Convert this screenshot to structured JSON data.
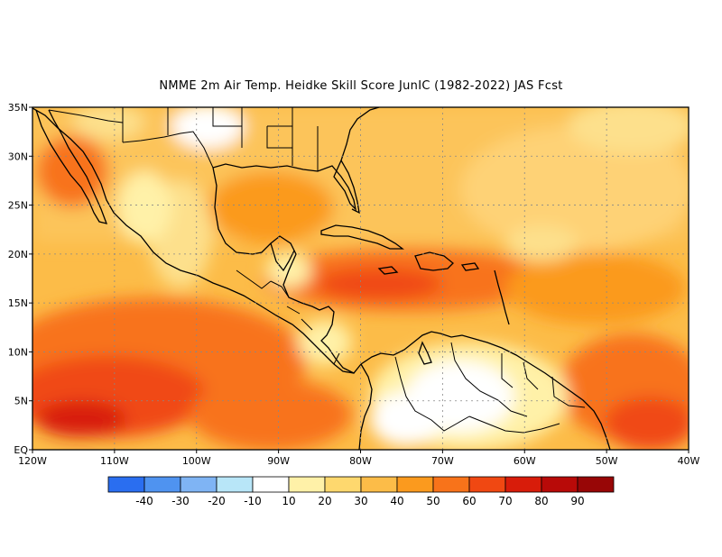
{
  "title": "NMME  2m Air Temp. Heidke Skill Score JunIC (1982-2022) JAS Fcst",
  "map": {
    "lon_range": [
      -120,
      -40
    ],
    "lat_range": [
      0,
      35
    ],
    "lat_ticks": [
      {
        "value": 35,
        "label": "35N"
      },
      {
        "value": 30,
        "label": "30N"
      },
      {
        "value": 25,
        "label": "25N"
      },
      {
        "value": 20,
        "label": "20N"
      },
      {
        "value": 15,
        "label": "15N"
      },
      {
        "value": 10,
        "label": "10N"
      },
      {
        "value": 5,
        "label": "5N"
      },
      {
        "value": 0,
        "label": "EQ"
      }
    ],
    "lon_ticks": [
      {
        "value": -120,
        "label": "120W"
      },
      {
        "value": -110,
        "label": "110W"
      },
      {
        "value": -100,
        "label": "100W"
      },
      {
        "value": -90,
        "label": "90W"
      },
      {
        "value": -80,
        "label": "80W"
      },
      {
        "value": -70,
        "label": "70W"
      },
      {
        "value": -60,
        "label": "60W"
      },
      {
        "value": -50,
        "label": "50W"
      },
      {
        "value": -40,
        "label": "40W"
      }
    ],
    "gridlines": "dotted"
  },
  "colorbar": {
    "labels": [
      "-40",
      "-30",
      "-20",
      "-10",
      "10",
      "20",
      "30",
      "40",
      "50",
      "60",
      "70",
      "80",
      "90"
    ],
    "colors": [
      "#2a6ef0",
      "#4f93f0",
      "#7fb4f4",
      "#b8e6f8",
      "#ffffff",
      "#fff1a8",
      "#fed86e",
      "#fcbc48",
      "#fb9a1e",
      "#f8731a",
      "#f04812",
      "#d81c0a",
      "#b80a08",
      "#980606"
    ]
  }
}
